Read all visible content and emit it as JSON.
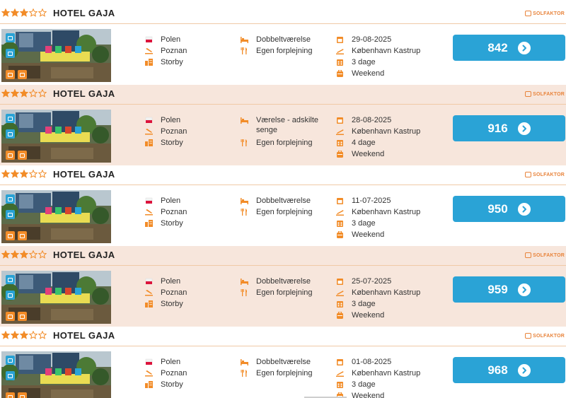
{
  "colors": {
    "accent": "#2aa3d6",
    "orange": "#f28c28",
    "alt_row": "#f7e6dc"
  },
  "brand_label": "SOLFAKTOR",
  "icons": {
    "country": "poland-flag-icon",
    "city": "plane-landing-icon",
    "type": "city-buildings-icon",
    "room": "bed-icon",
    "board": "cutlery-icon",
    "date": "calendar-icon",
    "airport": "plane-departure-icon",
    "duration": "calendar-days-icon",
    "period": "suitcase-icon"
  },
  "offers": [
    {
      "stars": 3,
      "max_stars": 5,
      "name": "HOTEL GAJA",
      "country": "Polen",
      "city": "Poznan",
      "type": "Storby",
      "room": "Dobbeltværelse",
      "board": "Egen forplejning",
      "date": "29-08-2025",
      "airport": "København Kastrup",
      "duration": "3 dage",
      "period": "Weekend",
      "price": "842"
    },
    {
      "stars": 3,
      "max_stars": 5,
      "name": "HOTEL GAJA",
      "country": "Polen",
      "city": "Poznan",
      "type": "Storby",
      "room": "Værelse - adskilte senge",
      "board": "Egen forplejning",
      "date": "28-08-2025",
      "airport": "København Kastrup",
      "duration": "4 dage",
      "period": "Weekend",
      "price": "916"
    },
    {
      "stars": 3,
      "max_stars": 5,
      "name": "HOTEL GAJA",
      "country": "Polen",
      "city": "Poznan",
      "type": "Storby",
      "room": "Dobbeltværelse",
      "board": "Egen forplejning",
      "date": "11-07-2025",
      "airport": "København Kastrup",
      "duration": "3 dage",
      "period": "Weekend",
      "price": "950"
    },
    {
      "stars": 3,
      "max_stars": 5,
      "name": "HOTEL GAJA",
      "country": "Polen",
      "city": "Poznan",
      "type": "Storby",
      "room": "Dobbeltværelse",
      "board": "Egen forplejning",
      "date": "25-07-2025",
      "airport": "København Kastrup",
      "duration": "3 dage",
      "period": "Weekend",
      "price": "959"
    },
    {
      "stars": 3,
      "max_stars": 5,
      "name": "HOTEL GAJA",
      "country": "Polen",
      "city": "Poznan",
      "type": "Storby",
      "room": "Dobbeltværelse",
      "board": "Egen forplejning",
      "date": "01-08-2025",
      "airport": "København Kastrup",
      "duration": "3 dage",
      "period": "Weekend",
      "price": "968"
    }
  ]
}
